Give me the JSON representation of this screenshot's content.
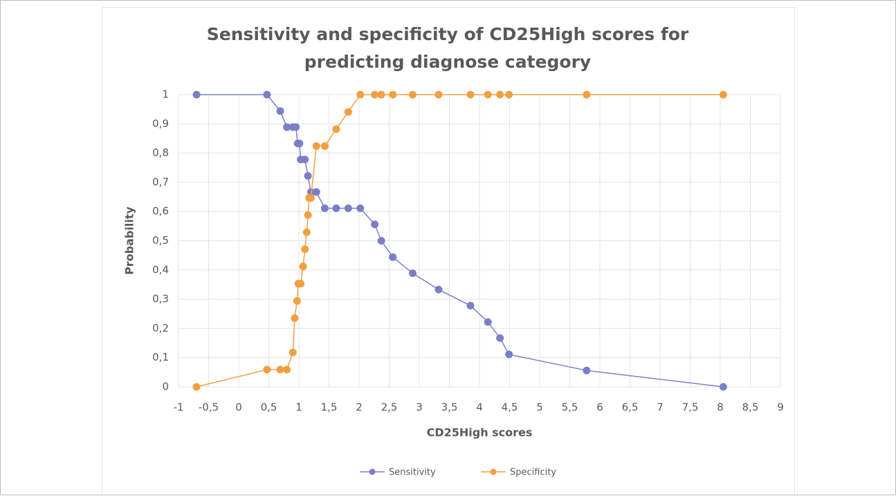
{
  "chart_data": {
    "type": "line",
    "title": "Sensitivity and specificity of CD25High scores for predicting diagnose category",
    "x_label": "CD25High scores",
    "y_label": "Probability",
    "xlim": [
      -1,
      9
    ],
    "ylim": [
      0,
      1
    ],
    "xticks": [
      -1,
      {
        "value": -0.5,
        "label": "-0,5"
      },
      0,
      {
        "value": 0.5,
        "label": "0,5"
      },
      1,
      {
        "value": 1.5,
        "label": "1,5"
      },
      2,
      {
        "value": 2.5,
        "label": "2,5"
      },
      3,
      {
        "value": 3.5,
        "label": "3,5"
      },
      4,
      {
        "value": 4.5,
        "label": "4,5"
      },
      5,
      {
        "value": 5.5,
        "label": "5,5"
      },
      6,
      {
        "value": 6.5,
        "label": "6,5"
      },
      7,
      {
        "value": 7.5,
        "label": "7,5"
      },
      8,
      {
        "value": 8.5,
        "label": "8,5"
      },
      9
    ],
    "yticks": [
      0,
      {
        "value": 0.1,
        "label": "0,1"
      },
      {
        "value": 0.2,
        "label": "0,2"
      },
      {
        "value": 0.3,
        "label": "0,3"
      },
      {
        "value": 0.4,
        "label": "0,4"
      },
      {
        "value": 0.5,
        "label": "0,5"
      },
      {
        "value": 0.6,
        "label": "0,6"
      },
      {
        "value": 0.7,
        "label": "0,7"
      },
      {
        "value": 0.8,
        "label": "0,8"
      },
      {
        "value": 0.9,
        "label": "0,9"
      },
      1
    ],
    "grid": true,
    "series": [
      {
        "name": "Sensitivity",
        "color": "#7b7fc8",
        "x": [
          -0.7,
          0.47,
          0.69,
          0.8,
          0.9,
          0.95,
          0.98,
          1.01,
          1.03,
          1.1,
          1.15,
          1.2,
          1.29,
          1.43,
          1.62,
          1.82,
          2.02,
          2.26,
          2.37,
          2.56,
          2.89,
          3.32,
          3.85,
          4.14,
          4.34,
          4.49,
          5.78,
          8.05
        ],
        "values": [
          1,
          1,
          0.944,
          0.889,
          0.889,
          0.889,
          0.833,
          0.833,
          0.778,
          0.778,
          0.722,
          0.667,
          0.667,
          0.611,
          0.611,
          0.611,
          0.611,
          0.556,
          0.5,
          0.444,
          0.389,
          0.333,
          0.278,
          0.222,
          0.167,
          0.111,
          0.056,
          0
        ]
      },
      {
        "name": "Specificity",
        "color": "#f0a040",
        "x": [
          -0.7,
          0.47,
          0.69,
          0.8,
          0.9,
          0.93,
          0.97,
          0.99,
          1.03,
          1.07,
          1.1,
          1.13,
          1.15,
          1.17,
          1.2,
          1.29,
          1.43,
          1.62,
          1.82,
          2.02,
          2.26,
          2.37,
          2.56,
          2.89,
          3.32,
          3.85,
          4.14,
          4.34,
          4.49,
          5.78,
          8.05
        ],
        "values": [
          0,
          0.059,
          0.059,
          0.059,
          0.118,
          0.235,
          0.294,
          0.353,
          0.353,
          0.412,
          0.471,
          0.529,
          0.588,
          0.647,
          0.647,
          0.824,
          0.824,
          0.882,
          0.941,
          1,
          1,
          1,
          1,
          1,
          1,
          1,
          1,
          1,
          1,
          1,
          1
        ]
      }
    ]
  }
}
